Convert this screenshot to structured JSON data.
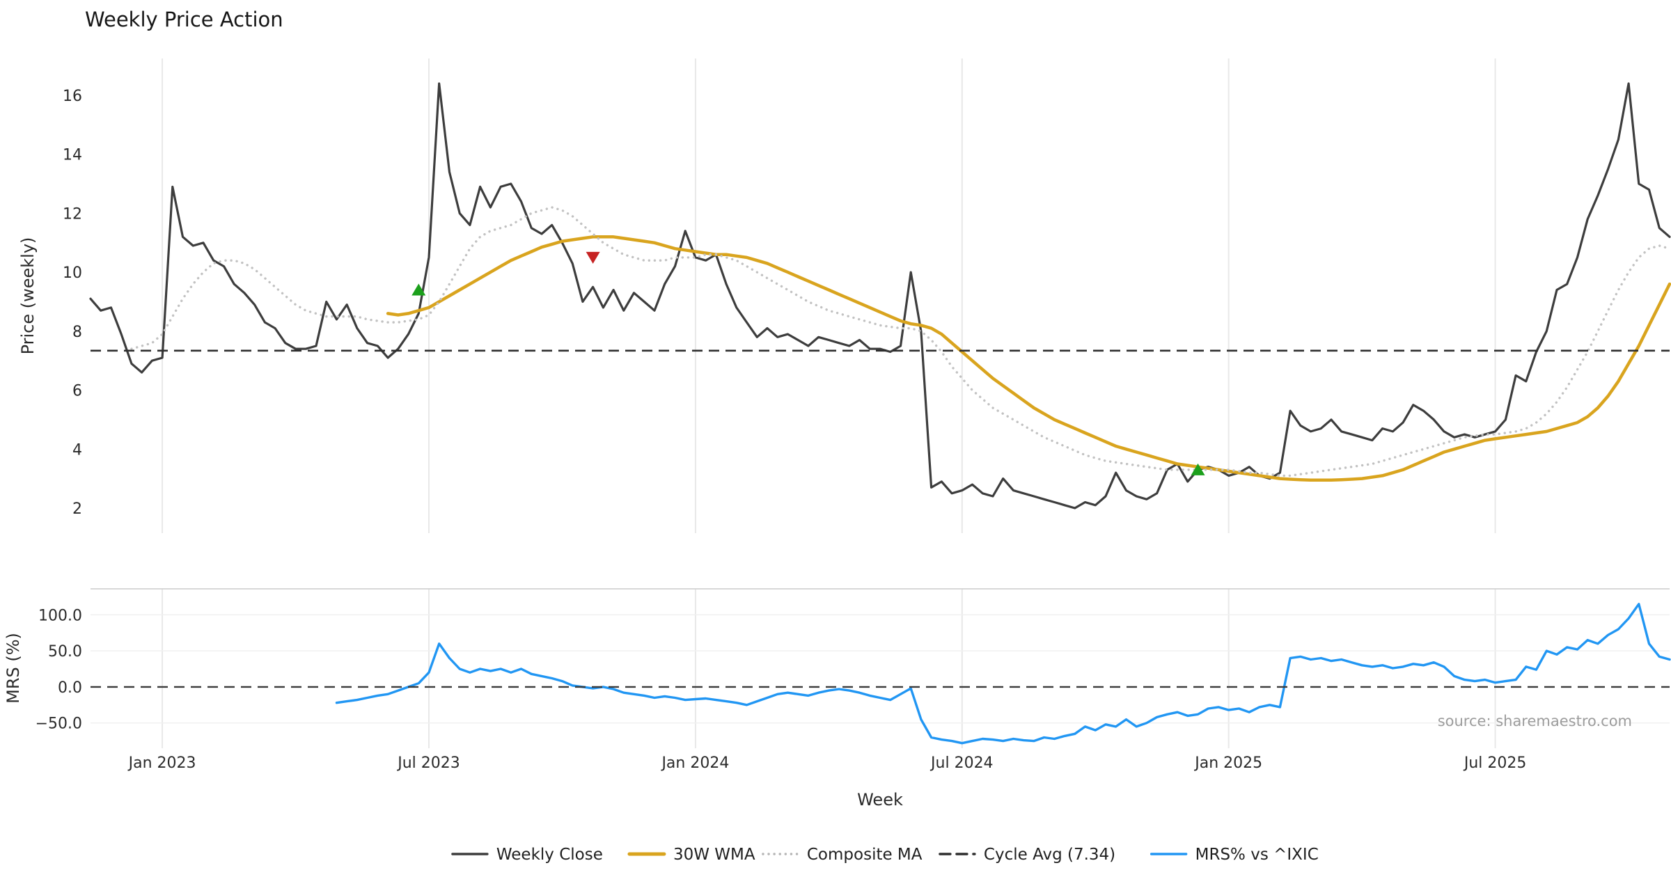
{
  "chart_data": {
    "type": "line",
    "title": "Weekly Price Action",
    "xlabel": "Week",
    "source_text": "source: sharemaestro.com",
    "x_unit": "week_index",
    "x_domain": [
      0,
      154
    ],
    "grid": "vertical-light",
    "legend_position": "bottom-center",
    "xticks": [
      {
        "week": 7,
        "label": "Jan 2023"
      },
      {
        "week": 33,
        "label": "Jul 2023"
      },
      {
        "week": 59,
        "label": "Jan 2024"
      },
      {
        "week": 85,
        "label": "Jul 2024"
      },
      {
        "week": 111,
        "label": "Jan 2025"
      },
      {
        "week": 137,
        "label": "Jul 2025"
      }
    ],
    "panels": [
      {
        "id": "price",
        "ylabel": "Price (weekly)",
        "ylim": [
          1.15,
          17.25
        ],
        "yticks": [
          2,
          4,
          6,
          8,
          10,
          12,
          14,
          16
        ],
        "decimals": 0,
        "series": [
          {
            "name": "Weekly Close",
            "color": "#3d3d3d",
            "style": "solid",
            "width": 3.2,
            "start_week": 0,
            "values": [
              9.1,
              8.7,
              8.8,
              7.9,
              6.9,
              6.6,
              7.0,
              7.1,
              12.9,
              11.2,
              10.9,
              11.0,
              10.4,
              10.2,
              9.6,
              9.3,
              8.9,
              8.3,
              8.1,
              7.6,
              7.4,
              7.4,
              7.5,
              9.0,
              8.4,
              8.9,
              8.1,
              7.6,
              7.5,
              7.1,
              7.4,
              7.9,
              8.6,
              10.5,
              16.4,
              13.4,
              12.0,
              11.6,
              12.9,
              12.2,
              12.9,
              13.0,
              12.4,
              11.5,
              11.3,
              11.6,
              11.0,
              10.3,
              9.0,
              9.5,
              8.8,
              9.4,
              8.7,
              9.3,
              9.0,
              8.7,
              9.6,
              10.2,
              11.4,
              10.5,
              10.4,
              10.6,
              9.6,
              8.8,
              8.3,
              7.8,
              8.1,
              7.8,
              7.9,
              7.7,
              7.5,
              7.8,
              7.7,
              7.6,
              7.5,
              7.7,
              7.4,
              7.4,
              7.3,
              7.5,
              10.0,
              8.0,
              2.7,
              2.9,
              2.5,
              2.6,
              2.8,
              2.5,
              2.4,
              3.0,
              2.6,
              2.5,
              2.4,
              2.3,
              2.2,
              2.1,
              2.0,
              2.2,
              2.1,
              2.4,
              3.2,
              2.6,
              2.4,
              2.3,
              2.5,
              3.3,
              3.5,
              2.9,
              3.3,
              3.4,
              3.3,
              3.1,
              3.2,
              3.4,
              3.1,
              3.0,
              3.2,
              5.3,
              4.8,
              4.6,
              4.7,
              5.0,
              4.6,
              4.5,
              4.4,
              4.3,
              4.7,
              4.6,
              4.9,
              5.5,
              5.3,
              5.0,
              4.6,
              4.4,
              4.5,
              4.4,
              4.5,
              4.6,
              5.0,
              6.5,
              6.3,
              7.3,
              8.0,
              9.4,
              9.6,
              10.5,
              11.8,
              12.6,
              13.5,
              14.5,
              16.4,
              13.0,
              12.8,
              11.5,
              11.2
            ]
          },
          {
            "name": "30W WMA",
            "color": "#d9a41e",
            "style": "solid",
            "width": 4.5,
            "start_week": 29,
            "values": [
              8.6,
              8.55,
              8.6,
              8.7,
              8.8,
              9.0,
              9.2,
              9.4,
              9.6,
              9.8,
              10.0,
              10.2,
              10.4,
              10.55,
              10.7,
              10.85,
              10.95,
              11.05,
              11.1,
              11.15,
              11.2,
              11.2,
              11.2,
              11.15,
              11.1,
              11.05,
              11.0,
              10.9,
              10.8,
              10.75,
              10.7,
              10.65,
              10.6,
              10.6,
              10.55,
              10.5,
              10.4,
              10.3,
              10.15,
              10.0,
              9.85,
              9.7,
              9.55,
              9.4,
              9.25,
              9.1,
              8.95,
              8.8,
              8.65,
              8.5,
              8.35,
              8.25,
              8.2,
              8.1,
              7.9,
              7.6,
              7.3,
              7.0,
              6.7,
              6.4,
              6.15,
              5.9,
              5.65,
              5.4,
              5.2,
              5.0,
              4.85,
              4.7,
              4.55,
              4.4,
              4.25,
              4.1,
              4.0,
              3.9,
              3.8,
              3.7,
              3.6,
              3.5,
              3.45,
              3.4,
              3.35,
              3.3,
              3.25,
              3.2,
              3.15,
              3.1,
              3.05,
              3.0,
              2.98,
              2.96,
              2.95,
              2.95,
              2.95,
              2.96,
              2.98,
              3.0,
              3.05,
              3.1,
              3.2,
              3.3,
              3.45,
              3.6,
              3.75,
              3.9,
              4.0,
              4.1,
              4.2,
              4.3,
              4.35,
              4.4,
              4.45,
              4.5,
              4.55,
              4.6,
              4.7,
              4.8,
              4.9,
              5.1,
              5.4,
              5.8,
              6.3,
              6.9,
              7.5,
              8.2,
              8.9,
              9.6
            ]
          },
          {
            "name": "Composite MA",
            "color": "#c2c2c2",
            "style": "dotted",
            "width": 3.4,
            "start_week": 4,
            "values": [
              7.4,
              7.5,
              7.6,
              7.9,
              8.5,
              9.1,
              9.6,
              10.0,
              10.3,
              10.4,
              10.4,
              10.3,
              10.1,
              9.8,
              9.5,
              9.2,
              8.9,
              8.7,
              8.6,
              8.5,
              8.5,
              8.5,
              8.5,
              8.4,
              8.35,
              8.3,
              8.3,
              8.35,
              8.4,
              8.55,
              9.0,
              9.6,
              10.2,
              10.8,
              11.2,
              11.4,
              11.5,
              11.6,
              11.8,
              12.0,
              12.1,
              12.2,
              12.1,
              11.9,
              11.6,
              11.3,
              11.0,
              10.8,
              10.6,
              10.5,
              10.4,
              10.4,
              10.4,
              10.5,
              10.5,
              10.5,
              10.6,
              10.6,
              10.5,
              10.4,
              10.2,
              10.0,
              9.8,
              9.6,
              9.4,
              9.2,
              9.0,
              8.85,
              8.7,
              8.6,
              8.5,
              8.4,
              8.3,
              8.2,
              8.15,
              8.1,
              8.1,
              8.0,
              7.7,
              7.3,
              6.8,
              6.4,
              6.0,
              5.7,
              5.4,
              5.2,
              5.0,
              4.8,
              4.6,
              4.4,
              4.25,
              4.1,
              3.95,
              3.8,
              3.7,
              3.6,
              3.55,
              3.5,
              3.45,
              3.4,
              3.35,
              3.3,
              3.3,
              3.3,
              3.3,
              3.3,
              3.3,
              3.3,
              3.25,
              3.2,
              3.2,
              3.15,
              3.1,
              3.1,
              3.15,
              3.2,
              3.25,
              3.3,
              3.35,
              3.4,
              3.45,
              3.5,
              3.6,
              3.7,
              3.8,
              3.9,
              4.0,
              4.1,
              4.2,
              4.3,
              4.4,
              4.45,
              4.5,
              4.5,
              4.55,
              4.6,
              4.7,
              4.9,
              5.2,
              5.6,
              6.1,
              6.7,
              7.3,
              8.0,
              8.7,
              9.4,
              10.0,
              10.5,
              10.8,
              10.9,
              10.8
            ]
          },
          {
            "name": "Cycle Avg",
            "color": "#2e2e2e",
            "style": "dashed",
            "width": 2.6,
            "const": 7.34
          }
        ],
        "markers": [
          {
            "type": "buy",
            "week": 32,
            "value": 9.4,
            "shape": "triangle-up",
            "color": "#1ca01c"
          },
          {
            "type": "sell",
            "week": 49,
            "value": 10.5,
            "shape": "triangle-down",
            "color": "#c62323"
          },
          {
            "type": "buy",
            "week": 108,
            "value": 3.3,
            "shape": "triangle-up",
            "color": "#1ca01c"
          }
        ]
      },
      {
        "id": "mrs",
        "ylabel": "MRS (%)",
        "ylim": [
          -85,
          136
        ],
        "yticks": [
          -50,
          0,
          50,
          100
        ],
        "decimals": 1,
        "series": [
          {
            "name": "MRS% vs ^IXIC",
            "color": "#2196f3",
            "style": "solid",
            "width": 3.4,
            "start_week": 24,
            "values": [
              -22,
              -20,
              -18,
              -15,
              -12,
              -10,
              -5,
              0,
              5,
              20,
              60,
              40,
              25,
              20,
              25,
              22,
              25,
              20,
              25,
              18,
              15,
              12,
              8,
              2,
              0,
              -2,
              0,
              -3,
              -8,
              -10,
              -12,
              -15,
              -13,
              -15,
              -18,
              -17,
              -16,
              -18,
              -20,
              -22,
              -25,
              -20,
              -15,
              -10,
              -8,
              -10,
              -12,
              -8,
              -5,
              -3,
              -5,
              -8,
              -12,
              -15,
              -18,
              -10,
              -2,
              -45,
              -70,
              -73,
              -75,
              -78,
              -75,
              -72,
              -73,
              -75,
              -72,
              -74,
              -75,
              -70,
              -72,
              -68,
              -65,
              -55,
              -60,
              -52,
              -55,
              -45,
              -55,
              -50,
              -42,
              -38,
              -35,
              -40,
              -38,
              -30,
              -28,
              -32,
              -30,
              -35,
              -28,
              -25,
              -28,
              40,
              42,
              38,
              40,
              36,
              38,
              34,
              30,
              28,
              30,
              26,
              28,
              32,
              30,
              34,
              28,
              15,
              10,
              8,
              10,
              6,
              8,
              10,
              28,
              24,
              50,
              45,
              55,
              52,
              65,
              60,
              72,
              80,
              95,
              115,
              60,
              42,
              38
            ]
          },
          {
            "name": "Zero Line",
            "color": "#3a3a3a",
            "style": "dashed",
            "width": 2.4,
            "const": 0
          }
        ],
        "markers": []
      }
    ],
    "legend": [
      {
        "label": "Weekly Close",
        "color": "#3d3d3d",
        "style": "solid"
      },
      {
        "label": "30W WMA",
        "color": "#d9a41e",
        "style": "solid"
      },
      {
        "label": "Composite MA",
        "color": "#b5b5b5",
        "style": "dotted"
      },
      {
        "label": "Cycle Avg (7.34)",
        "color": "#2e2e2e",
        "style": "dashed"
      },
      {
        "label": "MRS% vs ^IXIC",
        "color": "#2196f3",
        "style": "solid"
      }
    ]
  }
}
